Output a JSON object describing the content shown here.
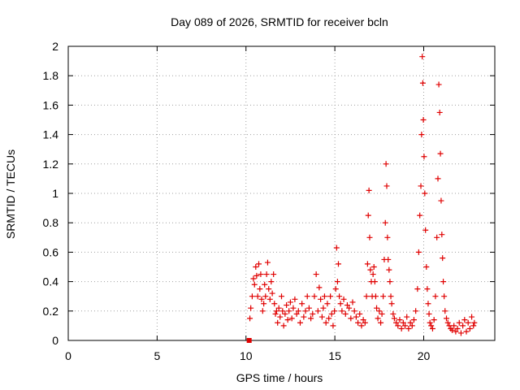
{
  "chart_data": {
    "type": "scatter",
    "title": "Day 089 of 2026, SRMTID for receiver bcln",
    "xlabel": "GPS time / hours",
    "ylabel": "SRMTID / TECUs",
    "xlim": [
      0,
      24
    ],
    "ylim": [
      0,
      2
    ],
    "xticks": [
      0,
      5,
      10,
      15,
      20
    ],
    "xtick_labels": [
      "0",
      "5",
      "10",
      "15",
      "20"
    ],
    "yticks": [
      0,
      0.2,
      0.4,
      0.6,
      0.8,
      1,
      1.2,
      1.4,
      1.6,
      1.8,
      2
    ],
    "ytick_labels": [
      "0",
      "0.2",
      "0.4",
      "0.6",
      "0.8",
      "1",
      "1.2",
      "1.4",
      "1.6",
      "1.8",
      "2"
    ],
    "grid": true,
    "marker": "+",
    "color": "#e00000",
    "series": [
      {
        "name": "SRMTID",
        "x": [
          10.22,
          10.27,
          10.35,
          10.42,
          10.48,
          10.55,
          10.6,
          10.66,
          10.72,
          10.78,
          10.83,
          10.88,
          10.94,
          11.0,
          11.05,
          11.1,
          11.16,
          11.22,
          11.28,
          11.35,
          11.42,
          11.48,
          11.55,
          11.6,
          11.66,
          11.72,
          11.78,
          11.85,
          11.92,
          12.0,
          12.06,
          12.12,
          12.2,
          12.28,
          12.35,
          12.42,
          12.5,
          12.58,
          12.66,
          12.75,
          12.85,
          12.95,
          13.05,
          13.15,
          13.25,
          13.35,
          13.45,
          13.55,
          13.65,
          13.75,
          13.85,
          13.95,
          14.05,
          14.12,
          14.2,
          14.28,
          14.35,
          14.42,
          14.5,
          14.58,
          14.66,
          14.75,
          14.82,
          14.9,
          14.98,
          15.05,
          15.1,
          15.15,
          15.2,
          15.25,
          15.32,
          15.4,
          15.5,
          15.6,
          15.7,
          15.8,
          15.9,
          16.0,
          16.1,
          16.2,
          16.3,
          16.4,
          16.5,
          16.6,
          16.7,
          16.78,
          16.84,
          16.88,
          16.92,
          16.96,
          17.0,
          17.05,
          17.1,
          17.15,
          17.2,
          17.25,
          17.3,
          17.35,
          17.42,
          17.5,
          17.58,
          17.65,
          17.72,
          17.78,
          17.84,
          17.88,
          17.92,
          17.96,
          18.0,
          18.05,
          18.1,
          18.15,
          18.2,
          18.28,
          18.35,
          18.45,
          18.55,
          18.65,
          18.75,
          18.85,
          18.95,
          19.05,
          19.15,
          19.25,
          19.35,
          19.45,
          19.55,
          19.65,
          19.72,
          19.78,
          19.84,
          19.88,
          19.92,
          19.95,
          19.98,
          20.02,
          20.06,
          20.1,
          20.15,
          20.2,
          20.25,
          20.3,
          20.35,
          20.42,
          20.5,
          20.58,
          20.66,
          20.74,
          20.8,
          20.85,
          20.9,
          20.94,
          20.98,
          21.02,
          21.06,
          21.1,
          21.15,
          21.2,
          21.28,
          21.36,
          21.44,
          21.52,
          21.6,
          21.7,
          21.8,
          21.9,
          22.0,
          22.1,
          22.2,
          22.3,
          22.4,
          22.5,
          22.6,
          22.7,
          22.8,
          22.85
        ],
        "y": [
          0.15,
          0.22,
          0.3,
          0.42,
          0.38,
          0.5,
          0.44,
          0.3,
          0.52,
          0.35,
          0.45,
          0.28,
          0.2,
          0.25,
          0.38,
          0.3,
          0.45,
          0.53,
          0.35,
          0.28,
          0.4,
          0.32,
          0.45,
          0.25,
          0.18,
          0.2,
          0.12,
          0.22,
          0.16,
          0.3,
          0.2,
          0.1,
          0.18,
          0.24,
          0.14,
          0.2,
          0.26,
          0.15,
          0.22,
          0.28,
          0.18,
          0.2,
          0.12,
          0.25,
          0.16,
          0.2,
          0.3,
          0.22,
          0.15,
          0.18,
          0.3,
          0.45,
          0.2,
          0.36,
          0.28,
          0.16,
          0.22,
          0.3,
          0.12,
          0.25,
          0.15,
          0.3,
          0.18,
          0.1,
          0.2,
          0.35,
          0.63,
          0.4,
          0.52,
          0.3,
          0.25,
          0.2,
          0.28,
          0.18,
          0.24,
          0.22,
          0.15,
          0.26,
          0.2,
          0.16,
          0.12,
          0.18,
          0.1,
          0.14,
          0.12,
          0.3,
          0.52,
          0.85,
          1.02,
          0.7,
          0.48,
          0.4,
          0.3,
          0.45,
          0.5,
          0.4,
          0.3,
          0.22,
          0.15,
          0.2,
          0.12,
          0.18,
          0.3,
          0.55,
          0.8,
          1.2,
          1.05,
          0.7,
          0.55,
          0.48,
          0.4,
          0.3,
          0.25,
          0.18,
          0.15,
          0.12,
          0.1,
          0.14,
          0.08,
          0.12,
          0.1,
          0.16,
          0.08,
          0.12,
          0.1,
          0.14,
          0.2,
          0.35,
          0.6,
          0.85,
          1.05,
          1.4,
          1.93,
          1.75,
          1.5,
          1.25,
          1.0,
          0.75,
          0.5,
          0.35,
          0.25,
          0.18,
          0.12,
          0.1,
          0.08,
          0.14,
          0.3,
          0.7,
          1.1,
          1.74,
          1.55,
          1.27,
          0.95,
          0.72,
          0.56,
          0.4,
          0.3,
          0.2,
          0.15,
          0.12,
          0.1,
          0.08,
          0.07,
          0.1,
          0.06,
          0.08,
          0.12,
          0.05,
          0.1,
          0.14,
          0.06,
          0.12,
          0.08,
          0.16,
          0.1,
          0.12
        ]
      }
    ],
    "extra_points": [
      {
        "x": 10.18,
        "y": 0.0,
        "marker": "filled-square"
      }
    ]
  }
}
